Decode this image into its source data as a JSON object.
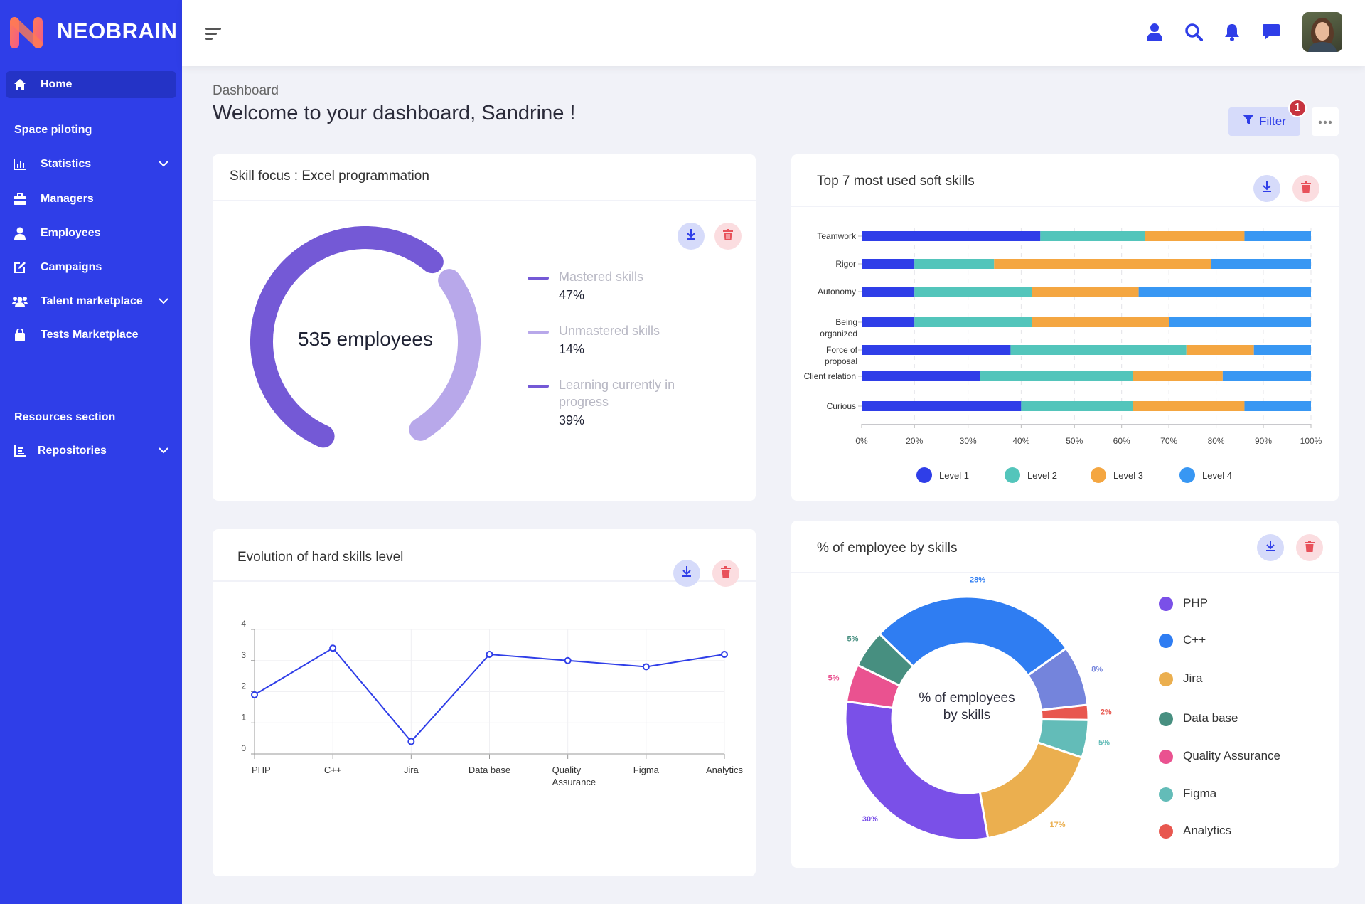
{
  "brand": {
    "name": "NEOBRAIN"
  },
  "sidebar": {
    "home": "Home",
    "section1": "Space piloting",
    "items": [
      {
        "label": "Statistics"
      },
      {
        "label": "Managers"
      },
      {
        "label": "Employees"
      },
      {
        "label": "Campaigns"
      },
      {
        "label": "Talent marketplace"
      },
      {
        "label": "Tests Marketplace"
      }
    ],
    "section2": "Resources section",
    "repositories": "Repositories"
  },
  "page": {
    "breadcrumb": "Dashboard",
    "title": "Welcome to your dashboard, Sandrine !",
    "filter_label": "Filter",
    "filter_badge": "1"
  },
  "colors": {
    "sidebar": "#2f3ee8",
    "accent": "#2f3ee8",
    "delete": "#e8515a"
  },
  "skill_focus": {
    "title": "Skill focus : Excel programmation",
    "center": "535 employees",
    "legend": [
      {
        "label": "Mastered skills",
        "value": "47%",
        "color": "#7459d6"
      },
      {
        "label": "Unmastered skills",
        "value": "14%",
        "color": "#b8a8ea"
      },
      {
        "label": "Learning currently in progress",
        "value": "39%",
        "color": "#7459d6"
      }
    ]
  },
  "chart_data": [
    {
      "type": "bar",
      "stacked": true,
      "orientation": "horizontal",
      "title": "Top 7 most used soft skills",
      "categories": [
        "Teamwork",
        "Rigor",
        "Autonomy",
        "Being organized",
        "Force of proposal",
        "Client relation",
        "Curious"
      ],
      "series": [
        {
          "name": "Level 1",
          "color": "#2f3ee8",
          "values": [
            43.6,
            20,
            20,
            20,
            38,
            32.2,
            40
          ]
        },
        {
          "name": "Level 2",
          "color": "#53c5bb",
          "values": [
            21.3,
            14.9,
            22,
            22,
            35.7,
            30.2,
            22.4
          ]
        },
        {
          "name": "Level 3",
          "color": "#f4a641",
          "values": [
            21.1,
            44,
            21.6,
            28,
            14.3,
            19,
            23.6
          ]
        },
        {
          "name": "Level 4",
          "color": "#3897f3",
          "values": [
            14,
            21.1,
            36.4,
            30,
            12,
            18.6,
            14
          ]
        }
      ],
      "xticks": [
        "0%",
        "20%",
        "30%",
        "40%",
        "50%",
        "60%",
        "70%",
        "80%",
        "90%",
        "100%"
      ],
      "legend": "bottom"
    },
    {
      "type": "line",
      "title": "Evolution of hard skills level",
      "categories": [
        "PHP",
        "C++",
        "Jira",
        "Data base",
        "Quality Assurance",
        "Figma",
        "Analytics"
      ],
      "values": [
        1.9,
        3.4,
        0.4,
        3.2,
        3.0,
        2.8,
        3.2
      ],
      "yticks": [
        "0",
        "1",
        "2",
        "3",
        "4"
      ],
      "ylim": [
        0,
        4
      ],
      "color": "#2f3ee8",
      "grid": true
    },
    {
      "type": "pie",
      "donut": true,
      "title": "% of employee by skills",
      "center_label": "% of employees by skills",
      "slices": [
        {
          "name": "C++",
          "value": 28,
          "label": "28%",
          "color": "#2f7df2"
        },
        {
          "name": null,
          "value": 8,
          "label": "8%",
          "color": "#7484dc"
        },
        {
          "name": "Analytics",
          "value": 2,
          "label": "2%",
          "color": "#e8574f"
        },
        {
          "name": "Figma",
          "value": 5,
          "label": "5%",
          "color": "#63bcb8"
        },
        {
          "name": "Jira",
          "value": 17,
          "label": "17%",
          "color": "#ebaf4f"
        },
        {
          "name": "PHP",
          "value": 30,
          "label": "30%",
          "color": "#7a50e8"
        },
        {
          "name": "Quality Assurance",
          "value": 5,
          "label": "5%",
          "color": "#ea5290"
        },
        {
          "name": "Data base",
          "value": 5,
          "label": "5%",
          "color": "#478f80"
        }
      ],
      "legend_order": [
        "PHP",
        "C++",
        "Jira",
        "Data base",
        "Quality Assurance",
        "Figma",
        "Analytics"
      ],
      "legend": "right"
    }
  ]
}
